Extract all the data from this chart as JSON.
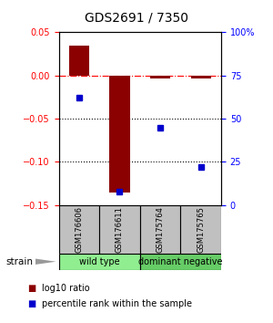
{
  "title": "GDS2691 / 7350",
  "samples": [
    "GSM176606",
    "GSM176611",
    "GSM175764",
    "GSM175765"
  ],
  "log10_ratio": [
    0.035,
    -0.135,
    -0.003,
    -0.003
  ],
  "percentile_rank": [
    62,
    8,
    45,
    22
  ],
  "ylim_left": [
    -0.15,
    0.05
  ],
  "ylim_right": [
    0,
    100
  ],
  "yticks_left": [
    0.05,
    0.0,
    -0.05,
    -0.1,
    -0.15
  ],
  "yticks_right": [
    100,
    75,
    50,
    25,
    0
  ],
  "hline_y": 0.0,
  "dotted_lines": [
    -0.05,
    -0.1
  ],
  "bar_color": "#8B0000",
  "dot_color": "#0000CC",
  "background_color": "#ffffff",
  "plot_bg": "#ffffff",
  "legend_red_label": "log10 ratio",
  "legend_blue_label": "percentile rank within the sample",
  "strain_label": "strain",
  "group_labels": [
    "wild type",
    "dominant negative"
  ],
  "group_colors": [
    "#90EE90",
    "#66CC66"
  ],
  "sample_box_color": "#C0C0C0",
  "bar_width": 0.5,
  "title_fontsize": 10,
  "tick_fontsize": 7,
  "sample_fontsize": 6,
  "group_fontsize": 7,
  "legend_fontsize": 7
}
